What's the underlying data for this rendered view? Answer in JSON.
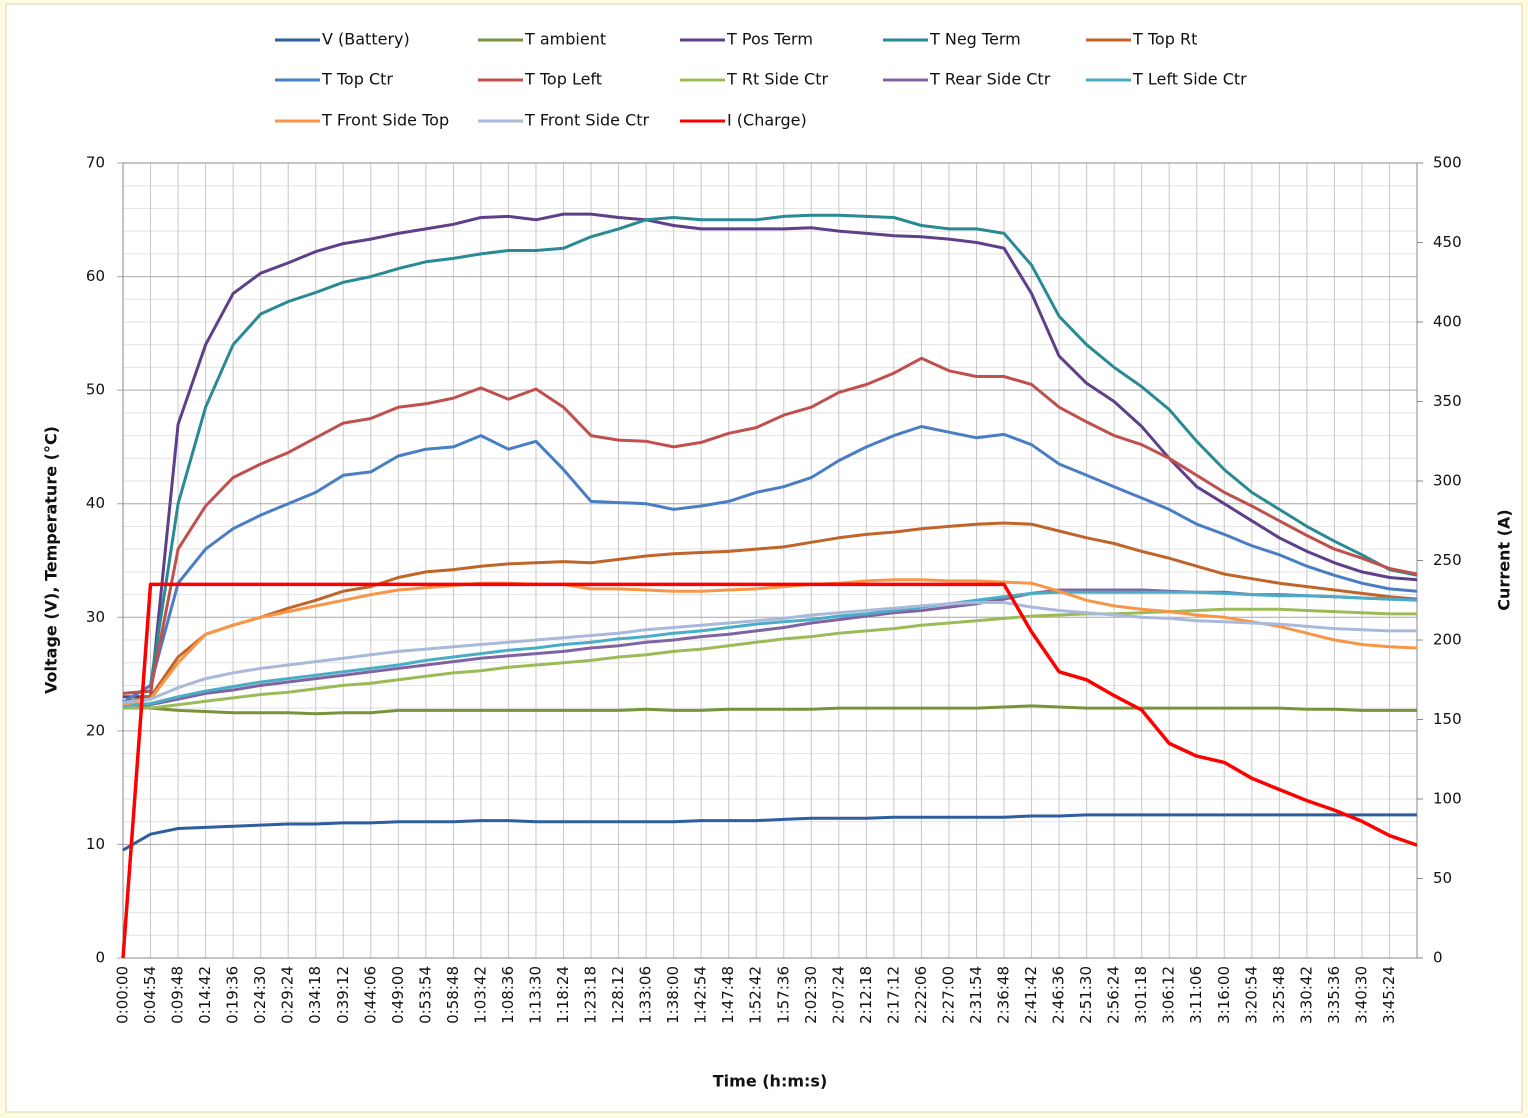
{
  "chart_data": {
    "type": "line",
    "y_label": "Voltage (V), Temperature (°C)",
    "y2_label": "Current (A)",
    "x_label": "Time (h:m:s)",
    "categories": [
      "0:00:00",
      "0:04:54",
      "0:09:48",
      "0:14:42",
      "0:19:36",
      "0:24:30",
      "0:29:24",
      "0:34:18",
      "0:39:12",
      "0:44:06",
      "0:49:00",
      "0:53:54",
      "0:58:48",
      "1:03:42",
      "1:08:36",
      "1:13:30",
      "1:18:24",
      "1:23:18",
      "1:28:12",
      "1:33:06",
      "1:38:00",
      "1:42:54",
      "1:47:48",
      "1:52:42",
      "1:57:36",
      "2:02:30",
      "2:07:24",
      "2:12:18",
      "2:17:12",
      "2:22:06",
      "2:27:00",
      "2:31:54",
      "2:36:48",
      "2:41:42",
      "2:46:36",
      "2:51:30",
      "2:56:24",
      "3:01:18",
      "3:06:12",
      "3:11:06",
      "3:16:00",
      "3:20:54",
      "3:25:48",
      "3:30:42",
      "3:35:36",
      "3:40:30",
      "3:45:24",
      null
    ],
    "ylim": [
      0,
      70
    ],
    "yticks": [
      0,
      10,
      20,
      30,
      40,
      50,
      60,
      70
    ],
    "y2lim": [
      0,
      500
    ],
    "y2ticks": [
      0,
      50,
      100,
      150,
      200,
      250,
      300,
      350,
      400,
      450,
      500
    ],
    "grid": true,
    "legend": "top",
    "series": [
      {
        "name": "V (Battery)",
        "color": "#2e5e9e",
        "values": [
          9.5,
          10.9,
          11.4,
          11.5,
          11.6,
          11.7,
          11.8,
          11.8,
          11.9,
          11.9,
          12.0,
          12.0,
          12.0,
          12.1,
          12.1,
          12.0,
          12.0,
          12.0,
          12.0,
          12.0,
          12.0,
          12.1,
          12.1,
          12.1,
          12.2,
          12.3,
          12.3,
          12.3,
          12.4,
          12.4,
          12.4,
          12.4,
          12.4,
          12.5,
          12.5,
          12.6,
          12.6,
          12.6,
          12.6,
          12.6,
          12.6,
          12.6,
          12.6,
          12.6,
          12.6,
          12.6,
          12.6,
          12.6
        ]
      },
      {
        "name": "T ambient",
        "color": "#77933c",
        "values": [
          22.5,
          22.0,
          21.8,
          21.7,
          21.6,
          21.6,
          21.6,
          21.5,
          21.6,
          21.6,
          21.8,
          21.8,
          21.8,
          21.8,
          21.8,
          21.8,
          21.8,
          21.8,
          21.8,
          21.9,
          21.8,
          21.8,
          21.9,
          21.9,
          21.9,
          21.9,
          22.0,
          22.0,
          22.0,
          22.0,
          22.0,
          22.0,
          22.1,
          22.2,
          22.1,
          22.0,
          22.0,
          22.0,
          22.0,
          22.0,
          22.0,
          22.0,
          22.0,
          21.9,
          21.9,
          21.8,
          21.8,
          21.8
        ]
      },
      {
        "name": "T Pos Term",
        "color": "#5f3f8a",
        "values": [
          23.0,
          23.0,
          47.0,
          54.0,
          58.5,
          60.3,
          61.2,
          62.2,
          62.9,
          63.3,
          63.8,
          64.2,
          64.6,
          65.2,
          65.3,
          65.0,
          65.5,
          65.5,
          65.2,
          65.0,
          64.5,
          64.2,
          64.2,
          64.2,
          64.2,
          64.3,
          64.0,
          63.8,
          63.6,
          63.5,
          63.3,
          63.0,
          62.5,
          58.5,
          53.0,
          50.6,
          49.0,
          46.8,
          44.0,
          41.5,
          40.0,
          38.5,
          37.0,
          35.8,
          34.8,
          34.0,
          33.5,
          33.3
        ]
      },
      {
        "name": "T Neg Term",
        "color": "#2a8a93",
        "values": [
          22.5,
          24.0,
          40.0,
          48.5,
          54.0,
          56.7,
          57.8,
          58.6,
          59.5,
          60.0,
          60.7,
          61.3,
          61.6,
          62.0,
          62.3,
          62.3,
          62.5,
          63.5,
          64.2,
          65.0,
          65.2,
          65.0,
          65.0,
          65.0,
          65.3,
          65.4,
          65.4,
          65.3,
          65.2,
          64.5,
          64.2,
          64.2,
          63.8,
          61.0,
          56.5,
          54.0,
          52.0,
          50.3,
          48.3,
          45.5,
          43.0,
          41.0,
          39.5,
          38.0,
          36.7,
          35.5,
          34.2,
          33.7
        ]
      },
      {
        "name": "T Top Rt",
        "color": "#c0652a",
        "values": [
          22.5,
          23.0,
          26.5,
          28.5,
          29.3,
          30.0,
          30.8,
          31.5,
          32.3,
          32.7,
          33.5,
          34.0,
          34.2,
          34.5,
          34.7,
          34.8,
          34.9,
          34.8,
          35.1,
          35.4,
          35.6,
          35.7,
          35.8,
          36.0,
          36.2,
          36.6,
          37.0,
          37.3,
          37.5,
          37.8,
          38.0,
          38.2,
          38.3,
          38.2,
          37.6,
          37.0,
          36.5,
          35.8,
          35.2,
          34.5,
          33.8,
          33.4,
          33.0,
          32.7,
          32.4,
          32.1,
          31.8,
          31.6
        ]
      },
      {
        "name": "T Top Ctr",
        "color": "#4a7ec4",
        "values": [
          22.5,
          24.0,
          33.0,
          36.0,
          37.8,
          39.0,
          40.0,
          41.0,
          42.5,
          42.8,
          44.2,
          44.8,
          45.0,
          46.0,
          44.8,
          45.5,
          43.0,
          40.2,
          40.1,
          40.0,
          39.5,
          39.8,
          40.2,
          41.0,
          41.5,
          42.3,
          43.8,
          45.0,
          46.0,
          46.8,
          46.3,
          45.8,
          46.1,
          45.2,
          43.5,
          42.5,
          41.5,
          40.5,
          39.5,
          38.2,
          37.3,
          36.3,
          35.5,
          34.5,
          33.7,
          33.0,
          32.5,
          32.3
        ]
      },
      {
        "name": "T Top Left",
        "color": "#c0504d",
        "values": [
          23.3,
          23.5,
          36.0,
          39.8,
          42.3,
          43.5,
          44.5,
          45.8,
          47.1,
          47.5,
          48.5,
          48.8,
          49.3,
          50.2,
          49.2,
          50.1,
          48.5,
          46.0,
          45.6,
          45.5,
          45.0,
          45.4,
          46.2,
          46.7,
          47.8,
          48.5,
          49.8,
          50.5,
          51.5,
          52.8,
          51.7,
          51.2,
          51.2,
          50.5,
          48.5,
          47.2,
          46.0,
          45.2,
          44.0,
          42.5,
          41.0,
          39.8,
          38.5,
          37.2,
          36.0,
          35.2,
          34.3,
          33.8
        ]
      },
      {
        "name": "T Rt Side Ctr",
        "color": "#9bbb59",
        "values": [
          22.0,
          22.0,
          22.3,
          22.6,
          22.9,
          23.2,
          23.4,
          23.7,
          24.0,
          24.2,
          24.5,
          24.8,
          25.1,
          25.3,
          25.6,
          25.8,
          26.0,
          26.2,
          26.5,
          26.7,
          27.0,
          27.2,
          27.5,
          27.8,
          28.1,
          28.3,
          28.6,
          28.8,
          29.0,
          29.3,
          29.5,
          29.7,
          29.9,
          30.1,
          30.2,
          30.3,
          30.3,
          30.4,
          30.5,
          30.6,
          30.7,
          30.7,
          30.7,
          30.6,
          30.5,
          30.4,
          30.3,
          30.3
        ]
      },
      {
        "name": "T Rear Side Ctr",
        "color": "#8064a2",
        "values": [
          22.3,
          22.3,
          22.8,
          23.3,
          23.6,
          24.0,
          24.3,
          24.6,
          24.9,
          25.2,
          25.5,
          25.8,
          26.1,
          26.4,
          26.6,
          26.8,
          27.0,
          27.3,
          27.5,
          27.8,
          28.0,
          28.3,
          28.5,
          28.8,
          29.1,
          29.5,
          29.8,
          30.1,
          30.4,
          30.6,
          30.9,
          31.2,
          31.6,
          32.1,
          32.4,
          32.4,
          32.4,
          32.4,
          32.3,
          32.2,
          32.2,
          32.0,
          32.0,
          31.9,
          31.8,
          31.7,
          31.6,
          31.6
        ]
      },
      {
        "name": "T Left Side Ctr",
        "color": "#4bacc6",
        "values": [
          22.2,
          22.4,
          23.0,
          23.5,
          23.9,
          24.3,
          24.6,
          24.9,
          25.2,
          25.5,
          25.8,
          26.2,
          26.5,
          26.8,
          27.1,
          27.3,
          27.6,
          27.8,
          28.1,
          28.3,
          28.6,
          28.8,
          29.1,
          29.4,
          29.6,
          29.8,
          30.1,
          30.3,
          30.6,
          30.9,
          31.2,
          31.5,
          31.8,
          32.1,
          32.2,
          32.2,
          32.2,
          32.2,
          32.2,
          32.2,
          32.1,
          32.0,
          31.9,
          31.9,
          31.8,
          31.7,
          31.6,
          31.5
        ]
      },
      {
        "name": "T Front Side Top",
        "color": "#f79646",
        "values": [
          22.3,
          22.8,
          26.0,
          28.5,
          29.3,
          30.0,
          30.5,
          31.0,
          31.5,
          32.0,
          32.4,
          32.6,
          32.8,
          33.0,
          33.0,
          32.9,
          32.9,
          32.5,
          32.5,
          32.4,
          32.3,
          32.3,
          32.4,
          32.5,
          32.7,
          32.9,
          33.0,
          33.2,
          33.3,
          33.3,
          33.2,
          33.2,
          33.1,
          33.0,
          32.3,
          31.5,
          31.0,
          30.7,
          30.5,
          30.2,
          30.0,
          29.6,
          29.2,
          28.6,
          28.0,
          27.6,
          27.4,
          27.3
        ]
      },
      {
        "name": "T Front Side Ctr",
        "color": "#a9b9d9",
        "values": [
          22.5,
          22.8,
          23.8,
          24.6,
          25.1,
          25.5,
          25.8,
          26.1,
          26.4,
          26.7,
          27.0,
          27.2,
          27.4,
          27.6,
          27.8,
          28.0,
          28.2,
          28.4,
          28.6,
          28.9,
          29.1,
          29.3,
          29.5,
          29.7,
          29.9,
          30.2,
          30.4,
          30.6,
          30.8,
          31.0,
          31.2,
          31.3,
          31.3,
          30.9,
          30.6,
          30.4,
          30.2,
          30.0,
          29.9,
          29.7,
          29.6,
          29.5,
          29.4,
          29.2,
          29.0,
          28.9,
          28.8,
          28.8
        ]
      },
      {
        "name": "I (Charge)",
        "color": "#ff0000",
        "axis": "y2",
        "values": [
          0,
          235,
          235,
          235,
          235,
          235,
          235,
          235,
          235,
          235,
          235,
          235,
          235,
          235,
          235,
          235,
          235,
          235,
          235,
          235,
          235,
          235,
          235,
          235,
          235,
          235,
          235,
          235,
          235,
          235,
          235,
          235,
          235,
          205,
          180,
          175,
          165,
          156,
          135,
          127,
          123,
          113,
          106,
          99,
          93,
          86,
          77,
          71
        ]
      }
    ]
  }
}
